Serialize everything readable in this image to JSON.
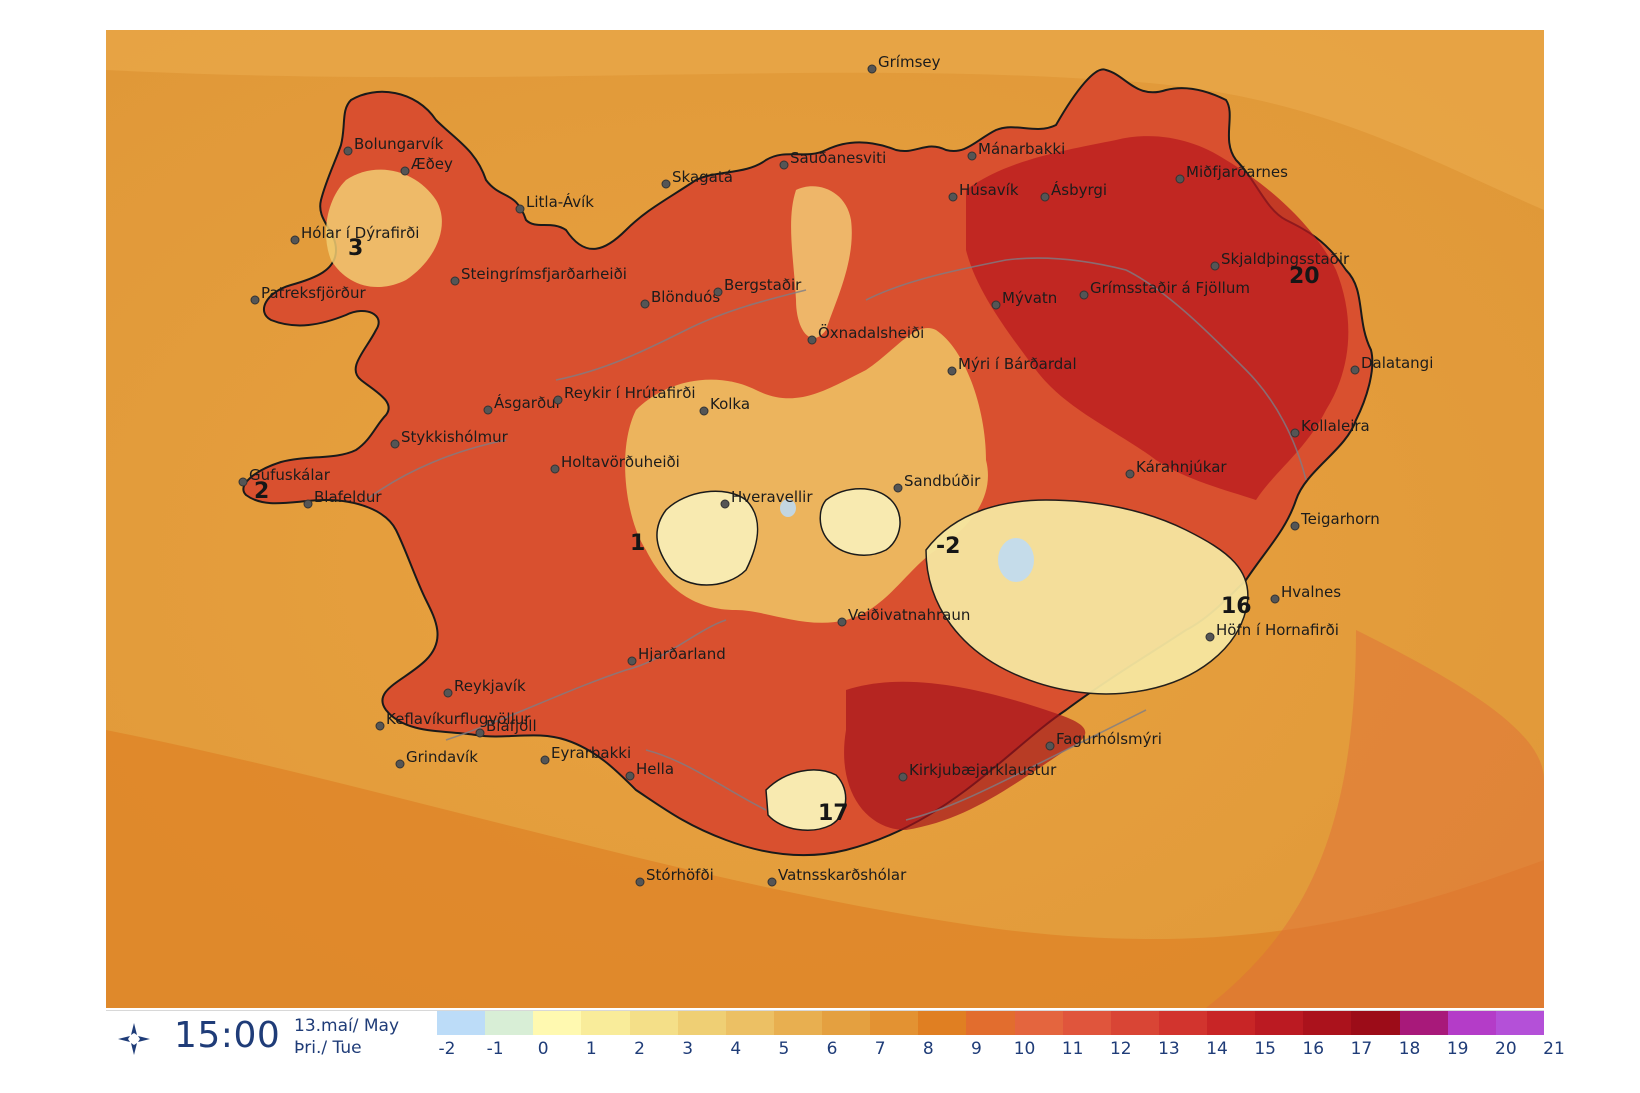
{
  "map": {
    "value_labels": [
      {
        "text": "3",
        "id": "val-3"
      },
      {
        "text": "2",
        "id": "val-2"
      },
      {
        "text": "1",
        "id": "val-1"
      },
      {
        "text": "-2",
        "id": "val-neg2"
      },
      {
        "text": "20",
        "id": "val-20"
      },
      {
        "text": "16",
        "id": "val-16"
      },
      {
        "text": "17",
        "id": "val-17"
      }
    ],
    "places": [
      "Grímsey",
      "Bolungarvík",
      "Æðey",
      "Litla-Ávík",
      "Hólar í Dýrafirði",
      "Patreksfjörður",
      "Steingrímsfjarðarheiði",
      "Skagatá",
      "Sauðanesviti",
      "Mánarbakki",
      "Miðfjarðarnes",
      "Húsavík",
      "Ásbyrgi",
      "Blönduós",
      "Bergstaðir",
      "Skjaldþingsstaðir",
      "Mývatn",
      "Grímsstaðir á Fjöllum",
      "Öxnadalsheiði",
      "Mýri í Bárðardal",
      "Dalatangi",
      "Ásgarður",
      "Reykir í Hrútafirði",
      "Kolka",
      "Kollaleira",
      "Stykkishólmur",
      "Kárahnjúkar",
      "Holtavörðuheiði",
      "Gufuskálar",
      "Blafeldur",
      "Sandbúðir",
      "Hveravellir",
      "Teigarhorn",
      "Hvalnes",
      "Veiðivatnahraun",
      "Höfn í Hornafirði",
      "Hjarðarland",
      "Reykjavík",
      "Keflavíkurflugvöllur",
      "Bláfjöll",
      "Fagurhólsmýri",
      "Grindavík",
      "Eyrarbakki",
      "Hella",
      "Kirkjubæjarklaustur",
      "Stórhöfði",
      "Vatnsskarðshólar"
    ]
  },
  "footer": {
    "time": "15:00",
    "date_line1": "13.maí/ May",
    "date_line2": "Þri./ Tue",
    "wind_icon": "wind-arrows-icon"
  },
  "legend": {
    "ticks": [
      "-2",
      "-1",
      "0",
      "1",
      "2",
      "3",
      "4",
      "5",
      "6",
      "7",
      "8",
      "9",
      "10",
      "11",
      "12",
      "13",
      "14",
      "15",
      "16",
      "17",
      "18",
      "19",
      "20",
      "21"
    ],
    "colors": [
      "#bcdcf8",
      "#d8eed6",
      "#fff9b0",
      "#f9ec9a",
      "#f4df88",
      "#efcf74",
      "#ecc064",
      "#e8af50",
      "#e4a040",
      "#e39232",
      "#e07f22",
      "#e26d2e",
      "#e4653e",
      "#e0553c",
      "#d94535",
      "#d2342e",
      "#c82526",
      "#bb1a22",
      "#ab121c",
      "#9c0c18",
      "#a8197a",
      "#b43cc8",
      "#b450d8"
    ]
  }
}
